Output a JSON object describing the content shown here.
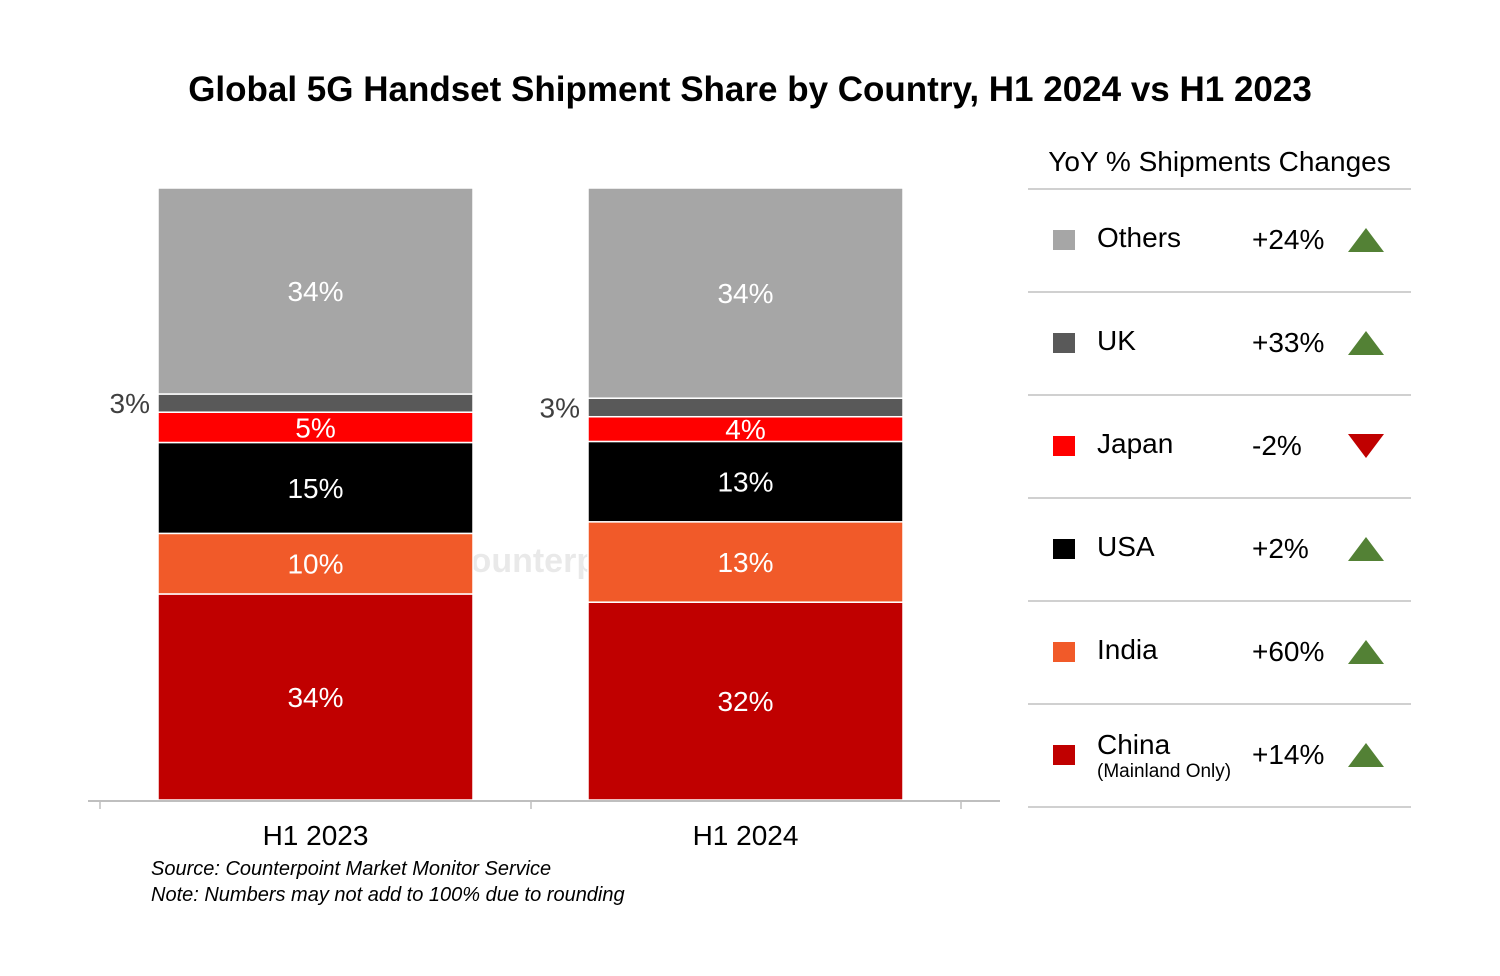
{
  "chart_data": {
    "type": "bar",
    "stacked": true,
    "normalized": true,
    "title": "Global 5G Handset Shipment Share by Country, H1 2024 vs H1 2023",
    "categories": [
      "H1 2023",
      "H1 2024"
    ],
    "series": [
      {
        "name": "China",
        "sub": "(Mainland Only)",
        "color": "#c00000",
        "values": [
          34,
          32
        ],
        "labels": [
          "34%",
          "32%"
        ]
      },
      {
        "name": "India",
        "color": "#f15a29",
        "values": [
          10,
          13
        ],
        "labels": [
          "10%",
          "13%"
        ]
      },
      {
        "name": "USA",
        "color": "#000000",
        "values": [
          15,
          13
        ],
        "labels": [
          "15%",
          "13%"
        ]
      },
      {
        "name": "Japan",
        "color": "#ff0000",
        "values": [
          5,
          4
        ],
        "labels": [
          "5%",
          "4%"
        ]
      },
      {
        "name": "UK",
        "color": "#595959",
        "values": [
          3,
          3
        ],
        "labels": [
          "3%",
          "3%"
        ]
      },
      {
        "name": "Others",
        "color": "#a6a6a6",
        "values": [
          34,
          34
        ],
        "labels": [
          "34%",
          "34%"
        ]
      }
    ],
    "legend": {
      "title": "YoY % Shipments Changes",
      "placement": "right",
      "items": [
        {
          "name": "Others",
          "color": "#a6a6a6",
          "change": "+24%",
          "direction": "up"
        },
        {
          "name": "UK",
          "color": "#595959",
          "change": "+33%",
          "direction": "up"
        },
        {
          "name": "Japan",
          "color": "#ff0000",
          "change": "-2%",
          "direction": "down"
        },
        {
          "name": "USA",
          "color": "#000000",
          "change": "+2%",
          "direction": "up"
        },
        {
          "name": "India",
          "color": "#f15a29",
          "change": "+60%",
          "direction": "up"
        },
        {
          "name": "China",
          "sub": "(Mainland Only)",
          "color": "#c00000",
          "change": "+14%",
          "direction": "up"
        }
      ]
    },
    "grid": false
  },
  "notes": {
    "source": "Source: Counterpoint Market Monitor Service",
    "note": "Note: Numbers may not add to 100% due to rounding"
  },
  "watermark": "Counterpoint",
  "colors": {
    "up": "#538135",
    "down": "#c00000"
  }
}
